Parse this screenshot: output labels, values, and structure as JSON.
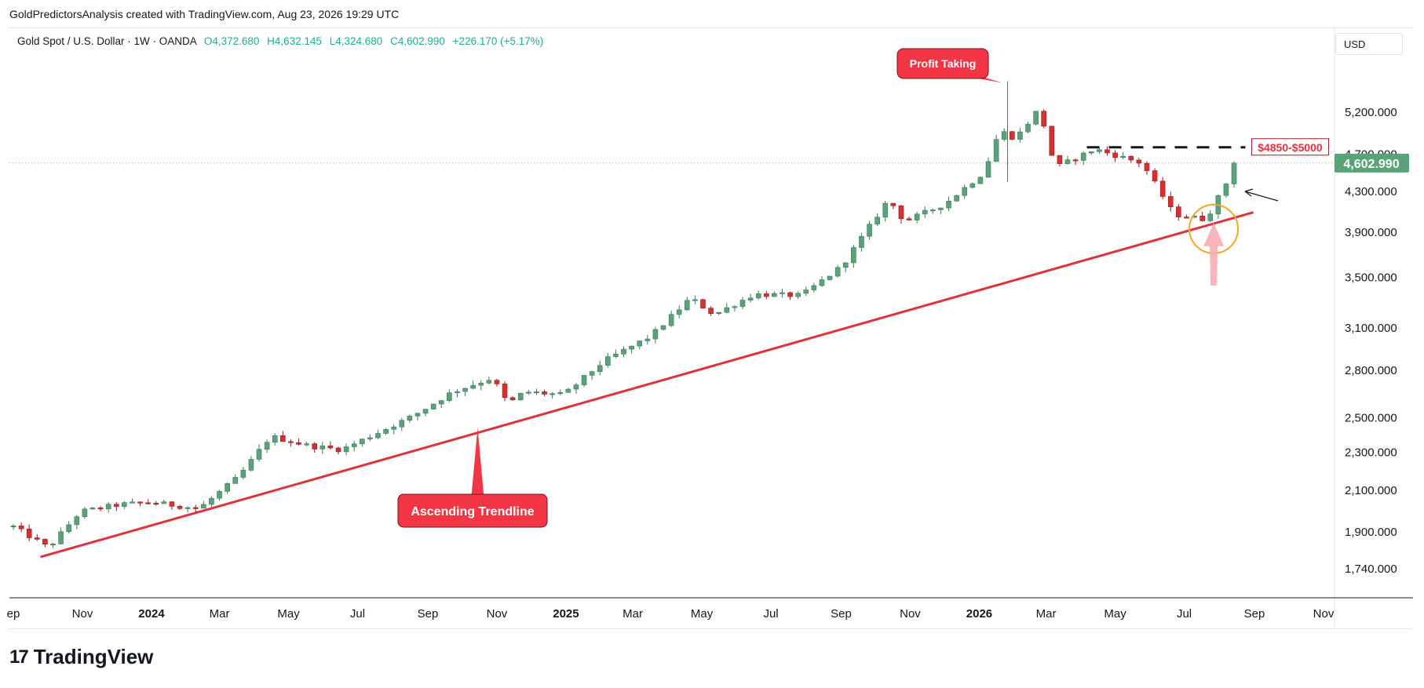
{
  "header": {
    "attribution": "GoldPredictorsAnalysis created with TradingView.com, Aug 23, 2026 19:29 UTC"
  },
  "legend": {
    "symbol": "Gold Spot / U.S. Dollar · 1W · OANDA",
    "open": "O4,372.680",
    "high": "H4,632.145",
    "low": "L4,324.680",
    "close": "C4,602.990",
    "change": "+226.170 (+5.17%)"
  },
  "currency": "USD",
  "brand": {
    "logo": "17",
    "name": "TradingView"
  },
  "colors": {
    "up": "#22ab94",
    "upFill": "#5aa37a",
    "down": "#d8302f",
    "trendline": "#e0323d",
    "callout": "#f23645",
    "priceTag": "#5aa37a",
    "circle": "#f5a623"
  },
  "annotations": {
    "profit_taking": "Profit Taking",
    "ascending_trendline": "Ascending Trendline",
    "target_zone": "$4850-$5000"
  },
  "chart_data": {
    "type": "candlestick",
    "title": "Gold Spot / U.S. Dollar · 1W · OANDA",
    "current_price": "4,602.990",
    "current_price_value": 4602.99,
    "y_scale": "log",
    "ylim": [
      1600,
      5800
    ],
    "y_ticks": [
      {
        "label": "5,200.000",
        "value": 5200
      },
      {
        "label": "4,700.000",
        "value": 4700
      },
      {
        "label": "4,300.000",
        "value": 4300
      },
      {
        "label": "3,900.000",
        "value": 3900
      },
      {
        "label": "3,500.000",
        "value": 3500
      },
      {
        "label": "3,100.000",
        "value": 3100
      },
      {
        "label": "2,800.000",
        "value": 2800
      },
      {
        "label": "2,500.000",
        "value": 2500
      },
      {
        "label": "2,300.000",
        "value": 2300
      },
      {
        "label": "2,100.000",
        "value": 2100
      },
      {
        "label": "1,900.000",
        "value": 1900
      },
      {
        "label": "1,740.000",
        "value": 1740
      }
    ],
    "x_ticks": [
      {
        "label": "ep",
        "date": "2023-09-01",
        "bold": false
      },
      {
        "label": "Nov",
        "date": "2023-11-01",
        "bold": false
      },
      {
        "label": "2024",
        "date": "2024-01-01",
        "bold": true
      },
      {
        "label": "Mar",
        "date": "2024-03-01",
        "bold": false
      },
      {
        "label": "May",
        "date": "2024-05-01",
        "bold": false
      },
      {
        "label": "Jul",
        "date": "2024-07-01",
        "bold": false
      },
      {
        "label": "Sep",
        "date": "2024-09-01",
        "bold": false
      },
      {
        "label": "Nov",
        "date": "2024-11-01",
        "bold": false
      },
      {
        "label": "2025",
        "date": "2025-01-01",
        "bold": true
      },
      {
        "label": "Mar",
        "date": "2025-03-01",
        "bold": false
      },
      {
        "label": "May",
        "date": "2025-05-01",
        "bold": false
      },
      {
        "label": "Jul",
        "date": "2025-07-01",
        "bold": false
      },
      {
        "label": "Sep",
        "date": "2025-09-01",
        "bold": false
      },
      {
        "label": "Nov",
        "date": "2025-11-01",
        "bold": false
      },
      {
        "label": "2026",
        "date": "2026-01-01",
        "bold": true
      },
      {
        "label": "Mar",
        "date": "2026-03-01",
        "bold": false
      },
      {
        "label": "May",
        "date": "2026-05-01",
        "bold": false
      },
      {
        "label": "Jul",
        "date": "2026-07-01",
        "bold": false
      },
      {
        "label": "Sep",
        "date": "2026-09-01",
        "bold": false
      },
      {
        "label": "Nov",
        "date": "2026-11-01",
        "bold": false
      }
    ],
    "trendline": {
      "start": {
        "date": "2023-09-25",
        "price": 1790
      },
      "end": {
        "date": "2026-08-31",
        "price": 4090
      }
    },
    "resistance_zone": {
      "start_date": "2026-04-06",
      "end_date": "2026-08-24",
      "price": 4780,
      "label": "$4850-$5000"
    },
    "close_path": [
      {
        "date": "2023-09-01",
        "close": 1925
      },
      {
        "date": "2023-10-02",
        "close": 1830
      },
      {
        "date": "2023-10-30",
        "close": 1995
      },
      {
        "date": "2023-12-04",
        "close": 2030
      },
      {
        "date": "2024-01-01",
        "close": 2040
      },
      {
        "date": "2024-02-12",
        "close": 2010
      },
      {
        "date": "2024-03-18",
        "close": 2170
      },
      {
        "date": "2024-04-15",
        "close": 2390
      },
      {
        "date": "2024-05-20",
        "close": 2335
      },
      {
        "date": "2024-06-17",
        "close": 2315
      },
      {
        "date": "2024-07-15",
        "close": 2400
      },
      {
        "date": "2024-08-19",
        "close": 2510
      },
      {
        "date": "2024-09-23",
        "close": 2660
      },
      {
        "date": "2024-10-28",
        "close": 2750
      },
      {
        "date": "2024-11-11",
        "close": 2580
      },
      {
        "date": "2024-11-25",
        "close": 2660
      },
      {
        "date": "2024-12-30",
        "close": 2640
      },
      {
        "date": "2025-02-03",
        "close": 2860
      },
      {
        "date": "2025-03-17",
        "close": 3040
      },
      {
        "date": "2025-04-21",
        "close": 3330
      },
      {
        "date": "2025-05-12",
        "close": 3200
      },
      {
        "date": "2025-06-16",
        "close": 3360
      },
      {
        "date": "2025-07-28",
        "close": 3350
      },
      {
        "date": "2025-09-01",
        "close": 3590
      },
      {
        "date": "2025-10-13",
        "close": 4220
      },
      {
        "date": "2025-10-27",
        "close": 4000
      },
      {
        "date": "2025-12-01",
        "close": 4170
      },
      {
        "date": "2026-01-05",
        "close": 4500
      },
      {
        "date": "2026-01-19",
        "close": 4980
      },
      {
        "date": "2026-02-02",
        "close": 4880
      },
      {
        "date": "2026-02-23",
        "close": 5250
      },
      {
        "date": "2026-03-09",
        "close": 4550
      },
      {
        "date": "2026-04-13",
        "close": 4760
      },
      {
        "date": "2026-05-25",
        "close": 4600
      },
      {
        "date": "2026-06-22",
        "close": 4070
      },
      {
        "date": "2026-07-20",
        "close": 4020
      },
      {
        "date": "2026-08-03",
        "close": 4300
      },
      {
        "date": "2026-08-17",
        "close": 4602.99
      }
    ],
    "profit_taking_peak": {
      "date": "2026-01-26",
      "price": 5600
    },
    "reference_marker": {
      "date": "2026-07-27",
      "price": 3930
    }
  }
}
